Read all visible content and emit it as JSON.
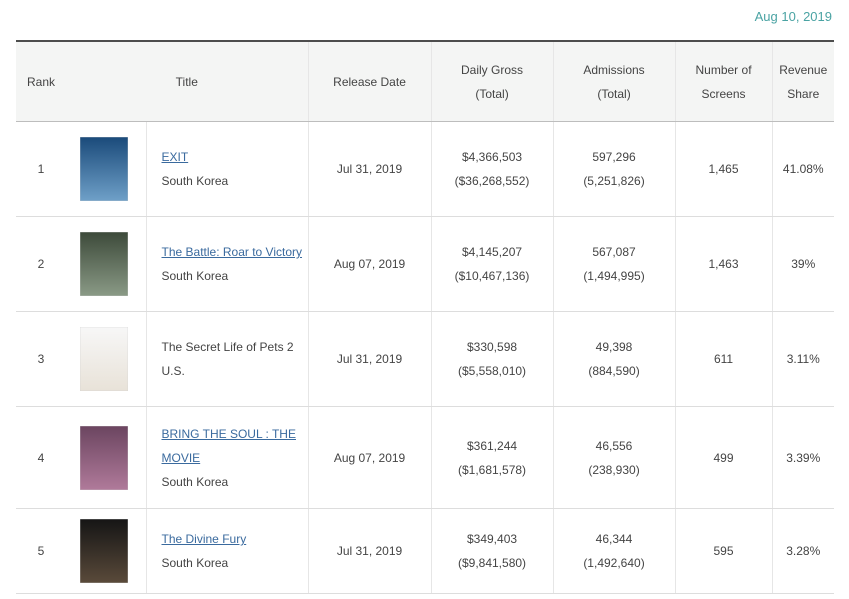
{
  "date": "Aug 10, 2019",
  "headers": {
    "rank": "Rank",
    "title": "Title",
    "release_date": "Release Date",
    "daily_gross": "Daily Gross",
    "daily_gross_sub": "(Total)",
    "admissions": "Admissions",
    "admissions_sub": "(Total)",
    "screens_1": "Number of",
    "screens_2": "Screens",
    "share_1": "Revenue",
    "share_2": "Share"
  },
  "rows": [
    {
      "rank": "1",
      "title": "EXIT",
      "title_line2": "",
      "country": "South Korea",
      "linked": true,
      "release_date": "Jul 31, 2019",
      "daily_gross": "$4,366,503",
      "total_gross": "($36,268,552)",
      "admissions": "597,296",
      "total_admissions": "(5,251,826)",
      "screens": "1,465",
      "share": "41.08%",
      "poster_colors": [
        "#1a4a7a",
        "#6fa0c8"
      ]
    },
    {
      "rank": "2",
      "title": "The Battle: Roar to Victory",
      "title_line2": "",
      "country": "South Korea",
      "linked": true,
      "release_date": "Aug 07, 2019",
      "daily_gross": "$4,145,207",
      "total_gross": "($10,467,136)",
      "admissions": "567,087",
      "total_admissions": "(1,494,995)",
      "screens": "1,463",
      "share": "39%",
      "poster_colors": [
        "#3d4a3a",
        "#8a9a86"
      ]
    },
    {
      "rank": "3",
      "title": "The Secret Life of Pets 2",
      "title_line2": "",
      "country": "U.S.",
      "linked": false,
      "release_date": "Jul 31, 2019",
      "daily_gross": "$330,598",
      "total_gross": "($5,558,010)",
      "admissions": "49,398",
      "total_admissions": "(884,590)",
      "screens": "611",
      "share": "3.11%",
      "poster_colors": [
        "#f7f7f7",
        "#e8e2d8"
      ]
    },
    {
      "rank": "4",
      "title": "BRING THE SOUL : THE",
      "title_line2": "MOVIE",
      "country": "South Korea",
      "linked": true,
      "release_date": "Aug 07, 2019",
      "daily_gross": "$361,244",
      "total_gross": "($1,681,578)",
      "admissions": "46,556",
      "total_admissions": "(238,930)",
      "screens": "499",
      "share": "3.39%",
      "poster_colors": [
        "#6b4560",
        "#b07a9a"
      ]
    },
    {
      "rank": "5",
      "title": "The Divine Fury",
      "title_line2": "",
      "country": "South Korea",
      "linked": true,
      "release_date": "Jul 31, 2019",
      "daily_gross": "$349,403",
      "total_gross": "($9,841,580)",
      "admissions": "46,344",
      "total_admissions": "(1,492,640)",
      "screens": "595",
      "share": "3.28%",
      "poster_colors": [
        "#151515",
        "#5a4a3a"
      ]
    }
  ]
}
